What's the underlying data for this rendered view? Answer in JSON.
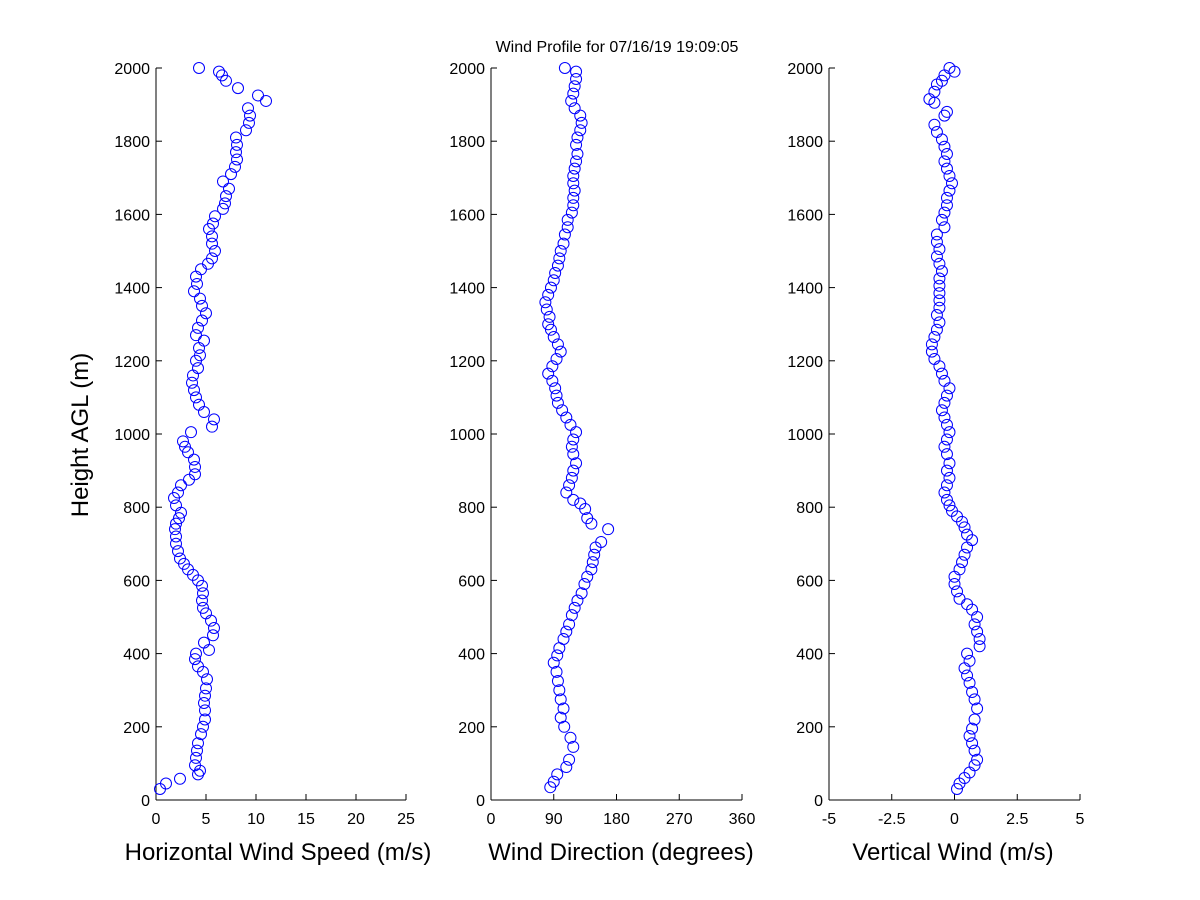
{
  "figure": {
    "title": "Wind Profile for  07/16/19 19:09:05",
    "ylabel": "Height AGL (m)",
    "marker_color": "#0000FF"
  },
  "chart_data": [
    {
      "type": "scatter",
      "name": "horizontal-wind-speed",
      "xlabel": "Horizontal Wind Speed (m/s)",
      "xlim": [
        0,
        25
      ],
      "ylim": [
        0,
        2000
      ],
      "xticks": [
        "0",
        "5",
        "10",
        "15",
        "20",
        "25"
      ],
      "yticks": [
        "0",
        "200",
        "400",
        "600",
        "800",
        "1000",
        "1200",
        "1400",
        "1600",
        "1800",
        "2000"
      ],
      "points": [
        [
          0.4,
          30
        ],
        [
          1.0,
          45
        ],
        [
          2.4,
          58
        ],
        [
          4.2,
          70
        ],
        [
          4.4,
          80
        ],
        [
          3.9,
          95
        ],
        [
          4.0,
          115
        ],
        [
          4.1,
          135
        ],
        [
          4.2,
          155
        ],
        [
          4.5,
          180
        ],
        [
          4.7,
          200
        ],
        [
          4.9,
          220
        ],
        [
          4.9,
          245
        ],
        [
          4.8,
          265
        ],
        [
          4.9,
          285
        ],
        [
          5.0,
          305
        ],
        [
          5.1,
          330
        ],
        [
          4.7,
          350
        ],
        [
          4.2,
          365
        ],
        [
          3.9,
          385
        ],
        [
          4.0,
          400
        ],
        [
          5.3,
          410
        ],
        [
          4.8,
          430
        ],
        [
          5.7,
          450
        ],
        [
          5.8,
          470
        ],
        [
          5.5,
          490
        ],
        [
          5.0,
          510
        ],
        [
          4.7,
          525
        ],
        [
          4.6,
          545
        ],
        [
          4.7,
          565
        ],
        [
          4.6,
          585
        ],
        [
          4.2,
          600
        ],
        [
          3.7,
          615
        ],
        [
          3.2,
          630
        ],
        [
          2.8,
          645
        ],
        [
          2.4,
          660
        ],
        [
          2.2,
          680
        ],
        [
          2.0,
          700
        ],
        [
          2.0,
          720
        ],
        [
          1.9,
          740
        ],
        [
          2.0,
          755
        ],
        [
          2.3,
          770
        ],
        [
          2.5,
          785
        ],
        [
          2.0,
          805
        ],
        [
          1.8,
          825
        ],
        [
          2.2,
          840
        ],
        [
          2.5,
          860
        ],
        [
          3.3,
          875
        ],
        [
          3.9,
          890
        ],
        [
          3.9,
          910
        ],
        [
          3.8,
          930
        ],
        [
          3.2,
          950
        ],
        [
          2.9,
          965
        ],
        [
          2.7,
          980
        ],
        [
          3.5,
          1005
        ],
        [
          5.6,
          1020
        ],
        [
          5.8,
          1040
        ],
        [
          4.8,
          1060
        ],
        [
          4.3,
          1080
        ],
        [
          4.0,
          1100
        ],
        [
          3.8,
          1120
        ],
        [
          3.6,
          1140
        ],
        [
          3.7,
          1160
        ],
        [
          4.2,
          1180
        ],
        [
          4.0,
          1200
        ],
        [
          4.4,
          1215
        ],
        [
          4.3,
          1235
        ],
        [
          4.8,
          1255
        ],
        [
          4.0,
          1270
        ],
        [
          4.2,
          1290
        ],
        [
          4.6,
          1310
        ],
        [
          5.0,
          1330
        ],
        [
          4.6,
          1350
        ],
        [
          4.4,
          1370
        ],
        [
          3.8,
          1390
        ],
        [
          4.1,
          1410
        ],
        [
          4.0,
          1430
        ],
        [
          4.5,
          1450
        ],
        [
          5.2,
          1465
        ],
        [
          5.6,
          1480
        ],
        [
          5.9,
          1500
        ],
        [
          5.6,
          1520
        ],
        [
          5.6,
          1540
        ],
        [
          5.3,
          1560
        ],
        [
          5.7,
          1575
        ],
        [
          5.9,
          1595
        ],
        [
          6.7,
          1615
        ],
        [
          6.9,
          1630
        ],
        [
          7.0,
          1650
        ],
        [
          7.3,
          1670
        ],
        [
          6.7,
          1690
        ],
        [
          7.5,
          1710
        ],
        [
          7.9,
          1730
        ],
        [
          8.1,
          1750
        ],
        [
          8.0,
          1770
        ],
        [
          8.1,
          1790
        ],
        [
          8.0,
          1810
        ],
        [
          9.0,
          1830
        ],
        [
          9.3,
          1850
        ],
        [
          9.4,
          1870
        ],
        [
          9.2,
          1890
        ],
        [
          11.0,
          1910
        ],
        [
          10.2,
          1925
        ],
        [
          8.2,
          1945
        ],
        [
          7.0,
          1965
        ],
        [
          6.6,
          1980
        ],
        [
          6.3,
          1990
        ],
        [
          4.3,
          2000
        ]
      ]
    },
    {
      "type": "scatter",
      "name": "wind-direction",
      "xlabel": "Wind Direction (degrees)",
      "xlim": [
        0,
        360
      ],
      "ylim": [
        0,
        2000
      ],
      "xticks": [
        "0",
        "90",
        "180",
        "270",
        "360"
      ],
      "yticks": [
        "0",
        "200",
        "400",
        "600",
        "800",
        "1000",
        "1200",
        "1400",
        "1600",
        "1800",
        "2000"
      ],
      "points": [
        [
          85,
          35
        ],
        [
          90,
          50
        ],
        [
          95,
          70
        ],
        [
          108,
          90
        ],
        [
          112,
          110
        ],
        [
          118,
          145
        ],
        [
          114,
          170
        ],
        [
          105,
          200
        ],
        [
          100,
          225
        ],
        [
          104,
          250
        ],
        [
          100,
          275
        ],
        [
          98,
          300
        ],
        [
          96,
          325
        ],
        [
          94,
          350
        ],
        [
          90,
          375
        ],
        [
          95,
          395
        ],
        [
          98,
          415
        ],
        [
          104,
          440
        ],
        [
          108,
          460
        ],
        [
          112,
          480
        ],
        [
          116,
          505
        ],
        [
          120,
          525
        ],
        [
          124,
          545
        ],
        [
          130,
          565
        ],
        [
          134,
          590
        ],
        [
          138,
          610
        ],
        [
          144,
          630
        ],
        [
          146,
          650
        ],
        [
          148,
          670
        ],
        [
          150,
          690
        ],
        [
          158,
          705
        ],
        [
          168,
          740
        ],
        [
          144,
          755
        ],
        [
          138,
          770
        ],
        [
          135,
          795
        ],
        [
          128,
          810
        ],
        [
          118,
          820
        ],
        [
          108,
          840
        ],
        [
          112,
          860
        ],
        [
          116,
          880
        ],
        [
          118,
          900
        ],
        [
          122,
          920
        ],
        [
          118,
          945
        ],
        [
          116,
          965
        ],
        [
          118,
          985
        ],
        [
          122,
          1005
        ],
        [
          114,
          1025
        ],
        [
          108,
          1045
        ],
        [
          102,
          1065
        ],
        [
          96,
          1085
        ],
        [
          94,
          1105
        ],
        [
          92,
          1125
        ],
        [
          88,
          1145
        ],
        [
          82,
          1165
        ],
        [
          88,
          1185
        ],
        [
          94,
          1205
        ],
        [
          100,
          1225
        ],
        [
          96,
          1245
        ],
        [
          90,
          1265
        ],
        [
          86,
          1285
        ],
        [
          82,
          1300
        ],
        [
          84,
          1320
        ],
        [
          80,
          1340
        ],
        [
          78,
          1360
        ],
        [
          82,
          1380
        ],
        [
          86,
          1400
        ],
        [
          90,
          1420
        ],
        [
          92,
          1440
        ],
        [
          96,
          1460
        ],
        [
          98,
          1480
        ],
        [
          100,
          1500
        ],
        [
          104,
          1520
        ],
        [
          106,
          1545
        ],
        [
          110,
          1565
        ],
        [
          110,
          1585
        ],
        [
          116,
          1605
        ],
        [
          118,
          1625
        ],
        [
          118,
          1645
        ],
        [
          120,
          1665
        ],
        [
          118,
          1685
        ],
        [
          118,
          1705
        ],
        [
          120,
          1725
        ],
        [
          122,
          1745
        ],
        [
          124,
          1765
        ],
        [
          122,
          1790
        ],
        [
          124,
          1810
        ],
        [
          128,
          1830
        ],
        [
          130,
          1850
        ],
        [
          128,
          1870
        ],
        [
          120,
          1890
        ],
        [
          115,
          1910
        ],
        [
          118,
          1930
        ],
        [
          120,
          1950
        ],
        [
          122,
          1970
        ],
        [
          122,
          1990
        ],
        [
          106,
          2000
        ]
      ]
    },
    {
      "type": "scatter",
      "name": "vertical-wind",
      "xlabel": "Vertical Wind (m/s)",
      "xlim": [
        -5,
        5
      ],
      "ylim": [
        0,
        2000
      ],
      "xticks": [
        "-5",
        "-2.5",
        "0",
        "2.5",
        "5"
      ],
      "yticks": [
        "0",
        "200",
        "400",
        "600",
        "800",
        "1000",
        "1200",
        "1400",
        "1600",
        "1800",
        "2000"
      ],
      "points": [
        [
          0.1,
          30
        ],
        [
          0.2,
          45
        ],
        [
          0.4,
          60
        ],
        [
          0.6,
          75
        ],
        [
          0.8,
          95
        ],
        [
          0.9,
          110
        ],
        [
          0.8,
          135
        ],
        [
          0.7,
          155
        ],
        [
          0.6,
          175
        ],
        [
          0.7,
          195
        ],
        [
          0.8,
          220
        ],
        [
          0.9,
          250
        ],
        [
          0.8,
          275
        ],
        [
          0.7,
          295
        ],
        [
          0.6,
          320
        ],
        [
          0.5,
          340
        ],
        [
          0.4,
          360
        ],
        [
          0.6,
          380
        ],
        [
          0.5,
          400
        ],
        [
          1.0,
          420
        ],
        [
          1.0,
          440
        ],
        [
          0.9,
          460
        ],
        [
          0.8,
          480
        ],
        [
          0.9,
          500
        ],
        [
          0.7,
          520
        ],
        [
          0.5,
          535
        ],
        [
          0.2,
          550
        ],
        [
          0.1,
          570
        ],
        [
          0.0,
          590
        ],
        [
          0.0,
          610
        ],
        [
          0.2,
          630
        ],
        [
          0.3,
          650
        ],
        [
          0.4,
          670
        ],
        [
          0.5,
          690
        ],
        [
          0.7,
          710
        ],
        [
          0.5,
          725
        ],
        [
          0.4,
          745
        ],
        [
          0.3,
          760
        ],
        [
          0.1,
          775
        ],
        [
          -0.1,
          790
        ],
        [
          -0.2,
          805
        ],
        [
          -0.3,
          820
        ],
        [
          -0.4,
          840
        ],
        [
          -0.3,
          860
        ],
        [
          -0.2,
          880
        ],
        [
          -0.3,
          900
        ],
        [
          -0.2,
          920
        ],
        [
          -0.3,
          945
        ],
        [
          -0.4,
          965
        ],
        [
          -0.3,
          985
        ],
        [
          -0.2,
          1005
        ],
        [
          -0.3,
          1025
        ],
        [
          -0.4,
          1045
        ],
        [
          -0.5,
          1065
        ],
        [
          -0.4,
          1085
        ],
        [
          -0.3,
          1105
        ],
        [
          -0.2,
          1125
        ],
        [
          -0.4,
          1145
        ],
        [
          -0.5,
          1165
        ],
        [
          -0.6,
          1185
        ],
        [
          -0.8,
          1205
        ],
        [
          -0.9,
          1225
        ],
        [
          -0.9,
          1245
        ],
        [
          -0.8,
          1265
        ],
        [
          -0.7,
          1285
        ],
        [
          -0.6,
          1305
        ],
        [
          -0.7,
          1325
        ],
        [
          -0.6,
          1345
        ],
        [
          -0.6,
          1365
        ],
        [
          -0.6,
          1385
        ],
        [
          -0.6,
          1405
        ],
        [
          -0.6,
          1425
        ],
        [
          -0.5,
          1445
        ],
        [
          -0.6,
          1465
        ],
        [
          -0.7,
          1485
        ],
        [
          -0.6,
          1505
        ],
        [
          -0.7,
          1525
        ],
        [
          -0.7,
          1545
        ],
        [
          -0.4,
          1565
        ],
        [
          -0.5,
          1585
        ],
        [
          -0.4,
          1605
        ],
        [
          -0.3,
          1625
        ],
        [
          -0.3,
          1645
        ],
        [
          -0.2,
          1665
        ],
        [
          -0.1,
          1685
        ],
        [
          -0.2,
          1705
        ],
        [
          -0.3,
          1725
        ],
        [
          -0.4,
          1745
        ],
        [
          -0.3,
          1765
        ],
        [
          -0.4,
          1785
        ],
        [
          -0.5,
          1805
        ],
        [
          -0.7,
          1825
        ],
        [
          -0.8,
          1845
        ],
        [
          -0.4,
          1870
        ],
        [
          -0.3,
          1880
        ],
        [
          -0.8,
          1905
        ],
        [
          -1.0,
          1915
        ],
        [
          -0.8,
          1935
        ],
        [
          -0.7,
          1955
        ],
        [
          -0.5,
          1965
        ],
        [
          -0.4,
          1980
        ],
        [
          0.0,
          1990
        ],
        [
          -0.2,
          2000
        ]
      ]
    }
  ]
}
